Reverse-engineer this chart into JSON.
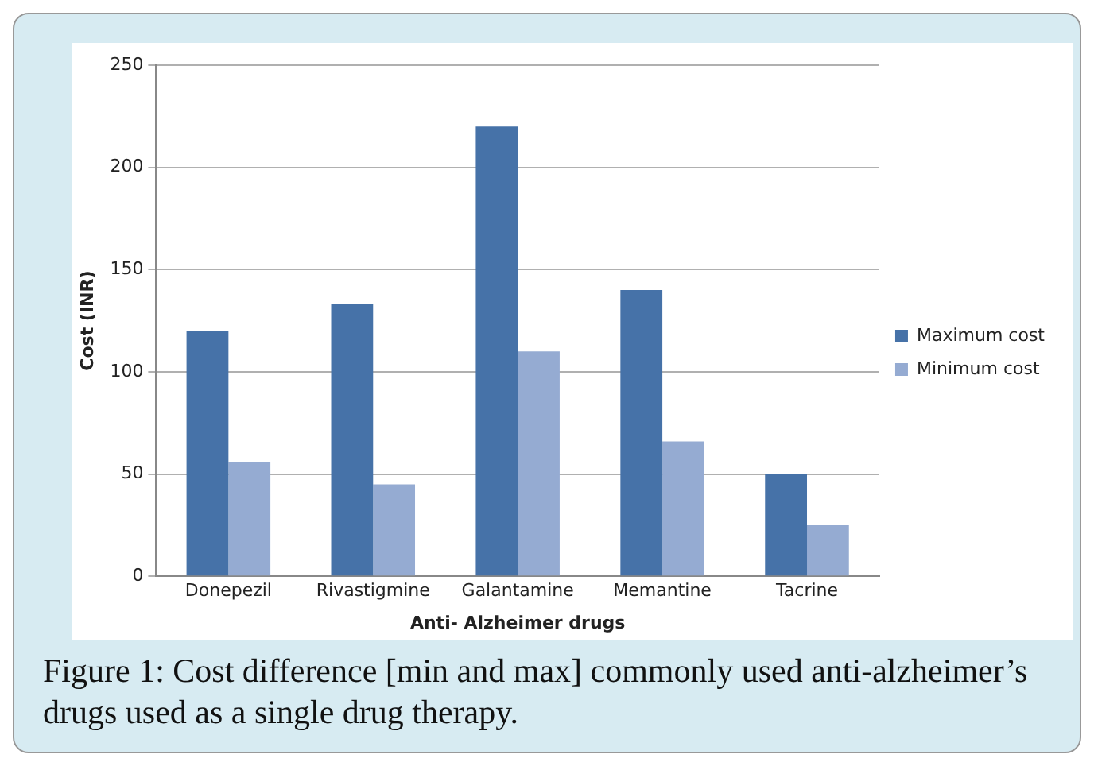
{
  "chart_data": {
    "type": "bar",
    "xlabel": "Anti- Alzheimer drugs",
    "ylabel": "Cost (INR)",
    "categories": [
      "Donepezil",
      "Rivastigmine",
      "Galantamine",
      "Memantine",
      "Tacrine"
    ],
    "series": [
      {
        "name": "Maximum cost",
        "color": "#4672a8",
        "values": [
          120,
          133,
          220,
          140,
          50
        ]
      },
      {
        "name": "Minimum cost",
        "color": "#95abd2",
        "values": [
          56,
          45,
          110,
          66,
          25
        ]
      }
    ],
    "ylim": [
      0,
      250
    ],
    "yticks": [
      0,
      50,
      100,
      150,
      200,
      250
    ],
    "grid": "y",
    "legend": "right",
    "annotations": [
      "Figure 1: Cost difference [min and max] commonly used anti-alzheimer’s drugs used as a single drug therapy."
    ]
  }
}
